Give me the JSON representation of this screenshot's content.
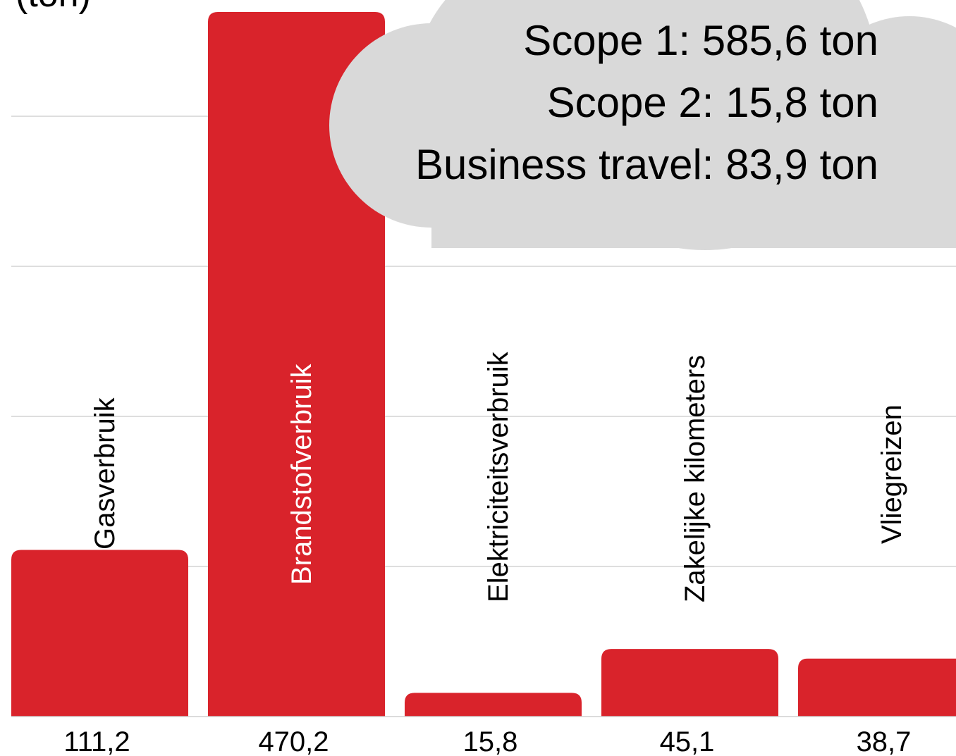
{
  "chart_data": {
    "type": "bar",
    "ylabel": "(ton)",
    "categories": [
      "Gasverbruik",
      "Brandstofverbruik",
      "Elektriciteitsverbruik",
      "Zakelijke kilometers",
      "Vliegreizen"
    ],
    "values": [
      111.2,
      470.2,
      15.8,
      45.1,
      38.7
    ],
    "value_labels": [
      "111,2",
      "470,2",
      "15,8",
      "45,1",
      "38,7"
    ],
    "ylim": [
      0,
      470.2
    ],
    "grid": true,
    "bar_color": "#d9232b",
    "annotations": {
      "scope1": "Scope 1: 585,6 ton",
      "scope2": "Scope 2: 15,8 ton",
      "business_travel": "Business travel: 83,9 ton"
    },
    "cloud_color": "#d9d9d9"
  }
}
